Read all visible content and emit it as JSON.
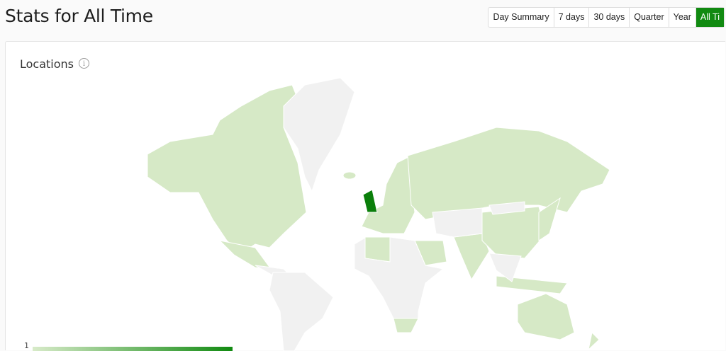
{
  "header": {
    "title": "Stats for All Time"
  },
  "range_buttons": [
    {
      "label": "Day Summary",
      "active": false
    },
    {
      "label": "7 days",
      "active": false
    },
    {
      "label": "30 days",
      "active": false
    },
    {
      "label": "Quarter",
      "active": false
    },
    {
      "label": "Year",
      "active": false
    },
    {
      "label": "All Ti",
      "active": true
    }
  ],
  "card": {
    "title": "Locations",
    "info_icon": "info-circle-icon"
  },
  "map": {
    "colors": {
      "none": "#f1f1f1",
      "low": "#d6e9c6",
      "high": "#0b7f0b"
    },
    "highlighted_country": "United Kingdom"
  },
  "legend": {
    "min_label": "1"
  }
}
